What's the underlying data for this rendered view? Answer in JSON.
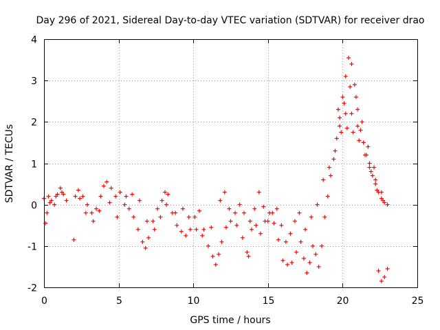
{
  "chart_data": {
    "type": "scatter",
    "title": "Day 296 of 2021, Sidereal Day-to-day VTEC variation (SDTVAR) for receiver drao",
    "xlabel": "GPS time / hours",
    "ylabel": "SDTVAR / TECUs",
    "xlim": [
      0,
      25
    ],
    "ylim": [
      -2,
      4
    ],
    "xticks": [
      "0",
      "5",
      "10",
      "15",
      "20",
      "25"
    ],
    "yticks": [
      "-2",
      "-1",
      "0",
      "1",
      "2",
      "3",
      "4"
    ],
    "grid": true,
    "marker": "+",
    "series": [
      {
        "name": "SDTVAR",
        "color": "#ff0000",
        "points": [
          [
            0.0,
            0.15
          ],
          [
            0.1,
            -0.45
          ],
          [
            0.2,
            -0.2
          ],
          [
            0.3,
            0.2
          ],
          [
            0.5,
            0.1
          ],
          [
            0.7,
            0.0
          ],
          [
            0.9,
            0.25
          ],
          [
            1.1,
            0.4
          ],
          [
            1.3,
            0.25
          ],
          [
            1.5,
            0.1
          ],
          [
            2.0,
            -0.85
          ],
          [
            2.1,
            0.2
          ],
          [
            2.3,
            0.35
          ],
          [
            2.6,
            0.2
          ],
          [
            2.9,
            0.0
          ],
          [
            3.2,
            -0.2
          ],
          [
            3.5,
            -0.1
          ],
          [
            3.8,
            0.2
          ],
          [
            4.0,
            0.45
          ],
          [
            4.2,
            0.55
          ],
          [
            4.5,
            0.4
          ],
          [
            4.8,
            0.2
          ],
          [
            5.1,
            0.3
          ],
          [
            5.4,
            0.0
          ],
          [
            5.7,
            -0.1
          ],
          [
            6.0,
            -0.3
          ],
          [
            6.3,
            -0.6
          ],
          [
            6.6,
            -0.9
          ],
          [
            6.8,
            -1.05
          ],
          [
            7.0,
            -0.8
          ],
          [
            7.3,
            -0.4
          ],
          [
            7.6,
            -0.1
          ],
          [
            7.9,
            0.1
          ],
          [
            8.1,
            0.3
          ],
          [
            8.3,
            0.25
          ],
          [
            8.6,
            -0.2
          ],
          [
            8.9,
            -0.5
          ],
          [
            9.2,
            -0.65
          ],
          [
            9.5,
            -0.75
          ],
          [
            9.8,
            -0.6
          ],
          [
            10.1,
            -0.3
          ],
          [
            10.4,
            -0.15
          ],
          [
            10.7,
            -0.6
          ],
          [
            11.0,
            -1.0
          ],
          [
            11.3,
            -1.25
          ],
          [
            11.5,
            -1.45
          ],
          [
            11.7,
            -1.2
          ],
          [
            11.9,
            -0.9
          ],
          [
            12.2,
            -0.55
          ],
          [
            12.5,
            -0.4
          ],
          [
            12.8,
            -0.2
          ],
          [
            13.1,
            0.0
          ],
          [
            13.4,
            -0.2
          ],
          [
            13.6,
            -1.15
          ],
          [
            13.7,
            -1.25
          ],
          [
            13.9,
            -0.6
          ],
          [
            14.2,
            -0.5
          ],
          [
            14.5,
            -0.7
          ],
          [
            14.8,
            -0.4
          ],
          [
            15.1,
            -0.2
          ],
          [
            15.4,
            -0.45
          ],
          [
            15.7,
            -0.85
          ],
          [
            16.0,
            -1.35
          ],
          [
            16.3,
            -1.45
          ],
          [
            16.6,
            -1.4
          ],
          [
            16.9,
            -1.15
          ],
          [
            17.2,
            -0.9
          ],
          [
            17.4,
            -1.3
          ],
          [
            17.6,
            -1.65
          ],
          [
            17.8,
            -1.4
          ],
          [
            18.0,
            -1.0
          ],
          [
            18.2,
            -1.2
          ],
          [
            18.4,
            -1.5
          ],
          [
            18.6,
            -1.0
          ],
          [
            18.8,
            -0.3
          ],
          [
            19.0,
            0.2
          ],
          [
            19.2,
            0.7
          ],
          [
            19.4,
            1.1
          ],
          [
            19.6,
            1.6
          ],
          [
            19.8,
            2.1
          ],
          [
            20.0,
            2.6
          ],
          [
            20.2,
            3.1
          ],
          [
            20.4,
            3.55
          ],
          [
            20.6,
            3.4
          ],
          [
            20.8,
            2.9
          ],
          [
            21.0,
            2.3
          ],
          [
            21.2,
            1.8
          ],
          [
            21.4,
            1.5
          ],
          [
            21.6,
            1.2
          ],
          [
            21.8,
            0.9
          ],
          [
            22.0,
            0.7
          ],
          [
            22.2,
            0.5
          ],
          [
            22.4,
            0.3
          ],
          [
            22.6,
            0.15
          ],
          [
            22.8,
            0.05
          ],
          [
            23.0,
            0.0
          ],
          [
            22.4,
            -1.6
          ],
          [
            22.6,
            -1.85
          ],
          [
            22.8,
            -1.75
          ],
          [
            23.0,
            -1.55
          ],
          [
            0.4,
            0.05
          ],
          [
            0.8,
            0.2
          ],
          [
            1.2,
            0.3
          ],
          [
            2.4,
            0.15
          ],
          [
            2.8,
            -0.2
          ],
          [
            3.3,
            -0.4
          ],
          [
            3.7,
            -0.15
          ],
          [
            4.4,
            0.05
          ],
          [
            4.9,
            -0.3
          ],
          [
            5.5,
            0.2
          ],
          [
            5.9,
            0.25
          ],
          [
            6.4,
            0.1
          ],
          [
            6.9,
            -0.4
          ],
          [
            7.4,
            -0.6
          ],
          [
            7.8,
            -0.3
          ],
          [
            8.2,
            0.0
          ],
          [
            8.8,
            -0.2
          ],
          [
            9.3,
            -0.1
          ],
          [
            9.7,
            -0.3
          ],
          [
            10.2,
            -0.6
          ],
          [
            10.6,
            -0.75
          ],
          [
            11.2,
            -0.55
          ],
          [
            11.8,
            0.1
          ],
          [
            12.1,
            0.3
          ],
          [
            12.4,
            -0.1
          ],
          [
            12.9,
            -0.5
          ],
          [
            13.3,
            -0.8
          ],
          [
            13.8,
            -0.4
          ],
          [
            14.1,
            -0.1
          ],
          [
            14.4,
            0.3
          ],
          [
            14.7,
            -0.05
          ],
          [
            15.0,
            -0.4
          ],
          [
            15.3,
            -0.2
          ],
          [
            15.6,
            -0.1
          ],
          [
            15.9,
            -0.5
          ],
          [
            16.2,
            -0.9
          ],
          [
            16.5,
            -0.7
          ],
          [
            16.8,
            -0.4
          ],
          [
            17.1,
            -0.2
          ],
          [
            17.5,
            -0.6
          ],
          [
            17.9,
            -0.3
          ],
          [
            18.3,
            0.0
          ],
          [
            18.7,
            0.6
          ],
          [
            19.1,
            0.9
          ],
          [
            19.5,
            1.3
          ],
          [
            19.9,
            1.75
          ],
          [
            20.3,
            1.85
          ],
          [
            20.7,
            1.75
          ],
          [
            21.1,
            1.55
          ],
          [
            21.5,
            1.2
          ],
          [
            21.9,
            0.8
          ],
          [
            22.3,
            0.35
          ],
          [
            22.7,
            0.1
          ],
          [
            19.7,
            2.3
          ],
          [
            20.1,
            2.45
          ],
          [
            20.5,
            2.85
          ],
          [
            20.9,
            2.6
          ],
          [
            21.3,
            2.0
          ],
          [
            21.7,
            1.4
          ],
          [
            22.1,
            0.9
          ],
          [
            19.8,
            1.9
          ],
          [
            20.2,
            2.2
          ],
          [
            20.6,
            2.2
          ],
          [
            21.0,
            1.9
          ],
          [
            21.4,
            1.5
          ],
          [
            21.8,
            1.0
          ],
          [
            22.2,
            0.6
          ],
          [
            22.6,
            0.3
          ]
        ]
      }
    ]
  }
}
